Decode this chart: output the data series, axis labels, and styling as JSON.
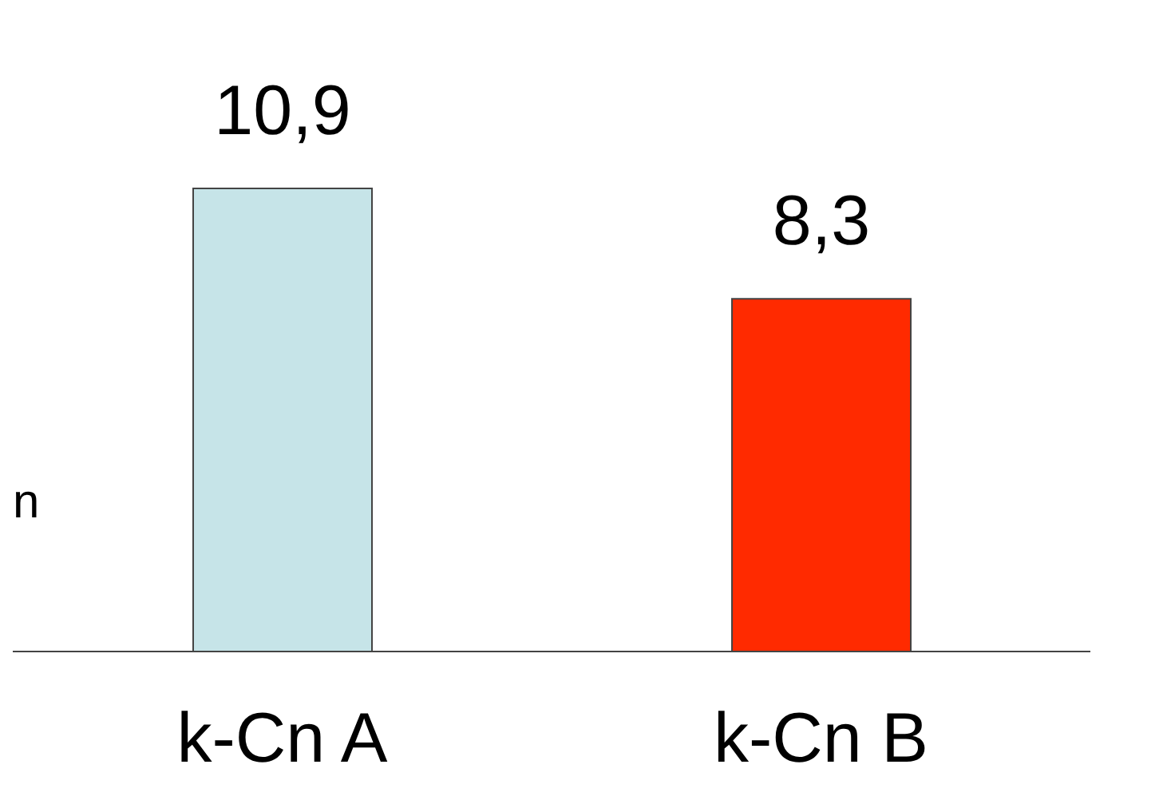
{
  "chart_data": {
    "type": "bar",
    "ylabel": "n",
    "categories": [
      "k-Cn A",
      "k-Cn B"
    ],
    "values": [
      10.9,
      8.3
    ],
    "colors": [
      "#c6e4e8",
      "#ff2a00"
    ],
    "value_labels": [
      "10,9",
      "8,3"
    ],
    "grid": false,
    "legend": false
  }
}
